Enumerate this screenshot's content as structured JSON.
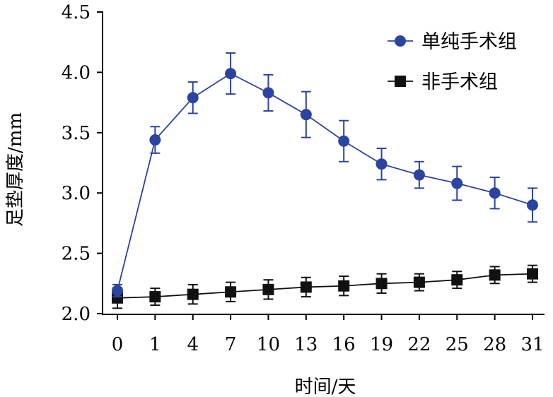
{
  "chart_data": {
    "type": "line",
    "title": "",
    "xlabel": "时间/天",
    "ylabel": "足垫厚度/mm",
    "categories": [
      "0",
      "1",
      "4",
      "7",
      "10",
      "13",
      "16",
      "19",
      "22",
      "25",
      "28",
      "31"
    ],
    "yticks": [
      "2.0",
      "2.5",
      "3.0",
      "3.5",
      "4.0",
      "4.5"
    ],
    "ylim": [
      2.0,
      4.5
    ],
    "legend_position": "top-right",
    "series": [
      {
        "name": "单纯手术组",
        "marker": "circle",
        "color": "#2b44a0",
        "values": [
          2.19,
          3.44,
          3.79,
          3.99,
          3.83,
          3.65,
          3.43,
          3.24,
          3.15,
          3.08,
          3.0,
          2.9
        ],
        "errors": [
          0.05,
          0.11,
          0.13,
          0.17,
          0.15,
          0.19,
          0.17,
          0.13,
          0.11,
          0.14,
          0.13,
          0.14
        ]
      },
      {
        "name": "非手术组",
        "marker": "square",
        "color": "#111111",
        "values": [
          2.13,
          2.14,
          2.16,
          2.18,
          2.2,
          2.22,
          2.23,
          2.25,
          2.26,
          2.28,
          2.32,
          2.33
        ],
        "errors": [
          0.085,
          0.07,
          0.08,
          0.08,
          0.08,
          0.08,
          0.08,
          0.08,
          0.07,
          0.07,
          0.07,
          0.07
        ]
      }
    ]
  }
}
